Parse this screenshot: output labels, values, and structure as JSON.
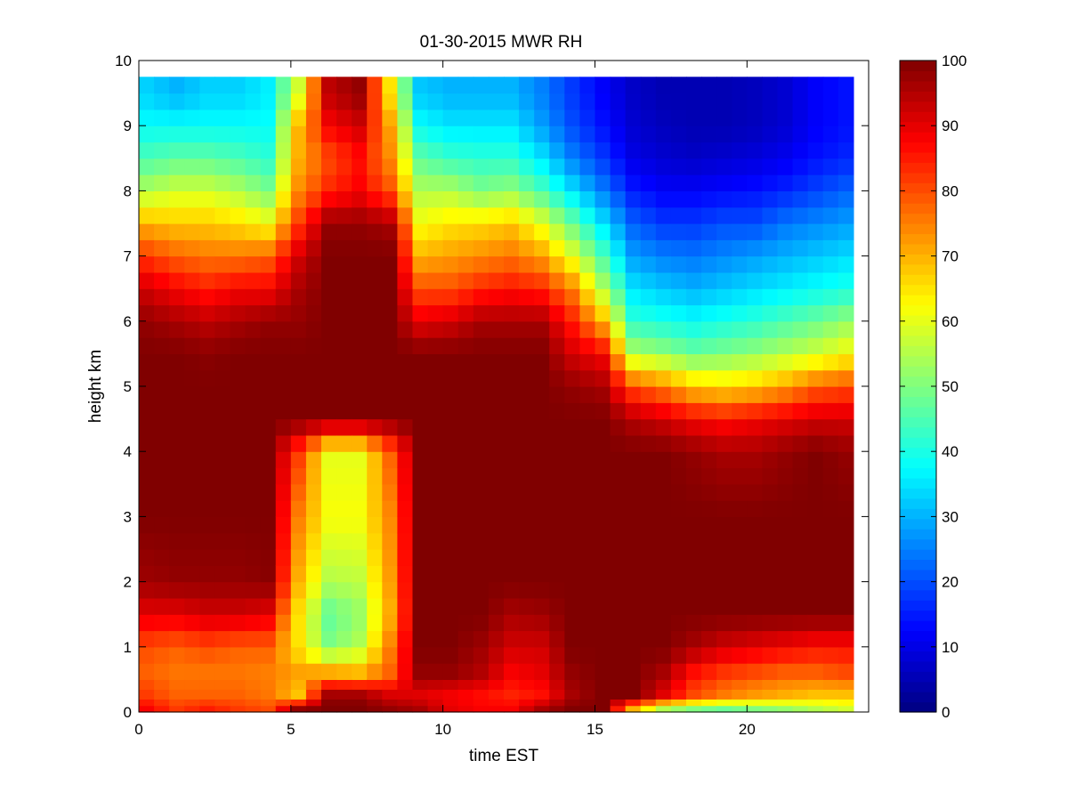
{
  "chart_data": {
    "type": "heatmap",
    "title": "01-30-2015 MWR RH",
    "xlabel": "time EST",
    "ylabel": "height km",
    "xlim": [
      0,
      24
    ],
    "ylim": [
      0,
      10
    ],
    "xticks": [
      0,
      5,
      10,
      15,
      20
    ],
    "yticks": [
      0,
      1,
      2,
      3,
      4,
      5,
      6,
      7,
      8,
      9,
      10
    ],
    "colorbar": {
      "colormap": "jet",
      "clim": [
        0,
        100
      ],
      "ticks": [
        0,
        10,
        20,
        30,
        40,
        50,
        60,
        70,
        80,
        90,
        100
      ]
    },
    "grid": false,
    "x_cells": {
      "start": 0,
      "step": 0.5,
      "count": 47
    },
    "y_edges": [
      0,
      0.1,
      0.2,
      0.35,
      0.5,
      0.75,
      1.0,
      1.25,
      1.5,
      1.75,
      2.0,
      2.25,
      2.5,
      2.75,
      3.0,
      3.25,
      3.5,
      3.75,
      4.0,
      4.25,
      4.5,
      4.75,
      5.0,
      5.25,
      5.5,
      5.75,
      6.0,
      6.25,
      6.5,
      6.75,
      7.0,
      7.25,
      7.5,
      7.75,
      8.0,
      8.25,
      8.5,
      8.75,
      9.0,
      9.25,
      9.5,
      9.75
    ],
    "anchor_times": [
      0.25,
      1.25,
      2.25,
      3.25,
      4.25,
      5.25,
      6.25,
      7.25,
      8.25,
      9.25,
      10.25,
      11.25,
      12.25,
      13.25,
      14.25,
      15.25,
      16.25,
      17.25,
      18.25,
      19.25,
      20.25,
      21.25,
      22.25,
      23.25
    ],
    "anchor_heights": [
      0.05,
      0.25,
      0.6,
      1.0,
      1.5,
      2.0,
      3.0,
      4.0,
      4.5,
      5.0,
      5.5,
      6.0,
      6.5,
      7.0,
      7.5,
      8.0,
      8.5,
      9.0,
      9.5
    ],
    "rh_profiles": [
      [
        88,
        82,
        78,
        80,
        90,
        97,
        100,
        100,
        100,
        100,
        100,
        98,
        92,
        82,
        70,
        55,
        45,
        38,
        33
      ],
      [
        82,
        78,
        76,
        78,
        90,
        98,
        100,
        100,
        100,
        100,
        100,
        96,
        88,
        78,
        68,
        58,
        47,
        38,
        30
      ],
      [
        85,
        78,
        76,
        80,
        92,
        98,
        100,
        100,
        100,
        100,
        99,
        94,
        85,
        76,
        68,
        58,
        47,
        38,
        33
      ],
      [
        82,
        78,
        76,
        78,
        92,
        98,
        100,
        100,
        100,
        100,
        100,
        96,
        88,
        76,
        66,
        55,
        45,
        38,
        33
      ],
      [
        80,
        76,
        75,
        78,
        90,
        99,
        100,
        100,
        100,
        100,
        100,
        98,
        88,
        78,
        62,
        50,
        42,
        38,
        36
      ],
      [
        98,
        68,
        72,
        65,
        65,
        70,
        75,
        82,
        100,
        100,
        100,
        98,
        96,
        92,
        82,
        74,
        70,
        70,
        58
      ],
      [
        100,
        98,
        72,
        50,
        47,
        55,
        62,
        60,
        100,
        100,
        100,
        100,
        100,
        100,
        98,
        84,
        80,
        88,
        94
      ],
      [
        100,
        98,
        70,
        55,
        52,
        56,
        62,
        60,
        100,
        100,
        100,
        100,
        100,
        100,
        98,
        88,
        86,
        92,
        98
      ],
      [
        98,
        92,
        78,
        75,
        70,
        72,
        74,
        78,
        100,
        100,
        100,
        100,
        100,
        100,
        96,
        80,
        74,
        72,
        65
      ],
      [
        96,
        90,
        98,
        100,
        100,
        100,
        100,
        100,
        100,
        100,
        100,
        90,
        80,
        70,
        62,
        55,
        47,
        38,
        32
      ],
      [
        90,
        88,
        98,
        100,
        100,
        100,
        100,
        100,
        100,
        100,
        100,
        92,
        80,
        72,
        65,
        55,
        43,
        35,
        30
      ],
      [
        88,
        86,
        95,
        97,
        100,
        100,
        100,
        100,
        100,
        100,
        100,
        96,
        84,
        74,
        66,
        50,
        42,
        35,
        30
      ],
      [
        88,
        84,
        88,
        92,
        96,
        100,
        100,
        100,
        100,
        100,
        100,
        96,
        86,
        76,
        68,
        52,
        42,
        35,
        30
      ],
      [
        96,
        86,
        90,
        92,
        97,
        100,
        100,
        100,
        100,
        100,
        100,
        96,
        84,
        72,
        60,
        45,
        35,
        28,
        25
      ],
      [
        100,
        96,
        98,
        100,
        100,
        100,
        100,
        100,
        100,
        98,
        92,
        85,
        75,
        60,
        48,
        35,
        25,
        20,
        18
      ],
      [
        100,
        100,
        100,
        100,
        100,
        100,
        100,
        100,
        100,
        96,
        88,
        70,
        55,
        45,
        35,
        25,
        18,
        14,
        12
      ],
      [
        70,
        100,
        100,
        100,
        100,
        100,
        100,
        100,
        95,
        80,
        55,
        42,
        35,
        28,
        22,
        15,
        10,
        8,
        7
      ],
      [
        55,
        90,
        96,
        100,
        100,
        100,
        100,
        100,
        92,
        75,
        52,
        40,
        32,
        25,
        18,
        12,
        8,
        6,
        5
      ],
      [
        50,
        80,
        86,
        96,
        100,
        100,
        100,
        98,
        88,
        68,
        48,
        38,
        30,
        24,
        18,
        12,
        7,
        5,
        5
      ],
      [
        48,
        75,
        82,
        92,
        100,
        100,
        100,
        96,
        86,
        66,
        50,
        40,
        32,
        26,
        20,
        13,
        8,
        5,
        5
      ],
      [
        50,
        72,
        80,
        90,
        100,
        100,
        100,
        96,
        88,
        68,
        52,
        42,
        34,
        28,
        20,
        14,
        9,
        6,
        6
      ],
      [
        52,
        70,
        78,
        88,
        100,
        100,
        100,
        98,
        90,
        72,
        55,
        45,
        36,
        30,
        24,
        16,
        11,
        8,
        8
      ],
      [
        55,
        68,
        78,
        86,
        100,
        100,
        100,
        100,
        92,
        78,
        58,
        48,
        38,
        32,
        26,
        19,
        14,
        12,
        12
      ],
      [
        58,
        68,
        80,
        86,
        100,
        100,
        100,
        98,
        92,
        80,
        62,
        52,
        40,
        34,
        28,
        22,
        16,
        14,
        14
      ]
    ]
  }
}
